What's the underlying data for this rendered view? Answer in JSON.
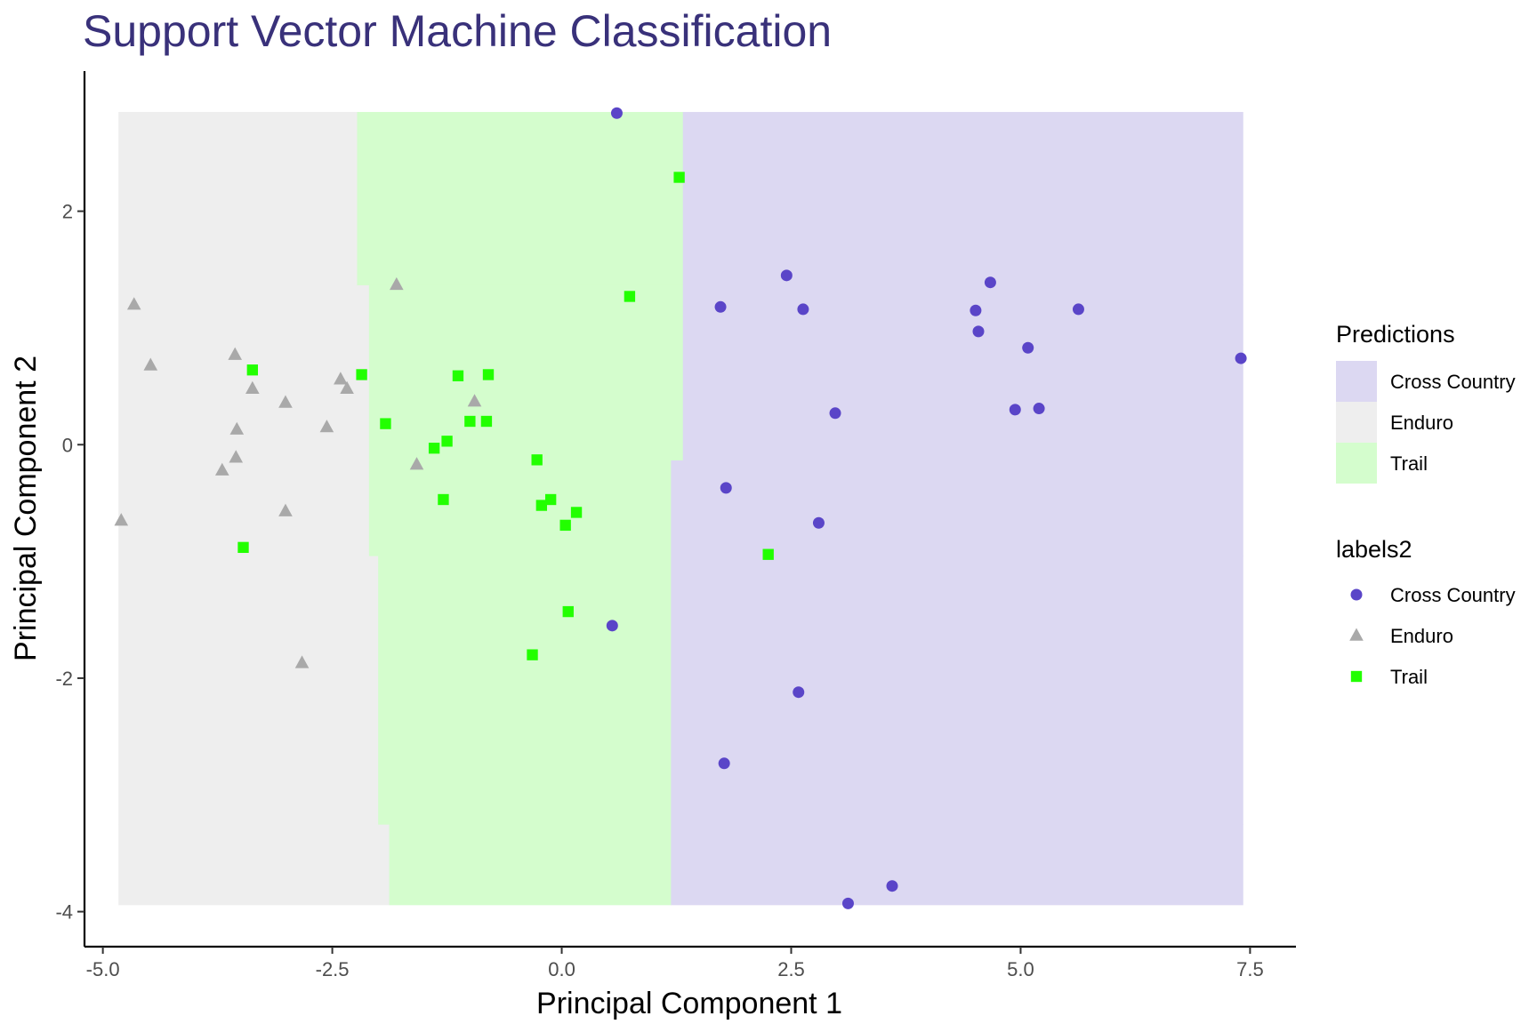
{
  "chart_data": {
    "type": "scatter",
    "title": "Support Vector Machine Classification",
    "xlabel": "Principal Component 1",
    "ylabel": "Principal Component 2",
    "xlim": [
      -5.2,
      8.0
    ],
    "ylim": [
      -4.3,
      3.2
    ],
    "x_ticks": [
      -5.0,
      -2.5,
      0.0,
      2.5,
      5.0,
      7.5
    ],
    "x_tick_labels": [
      "-5.0",
      "-2.5",
      "0.0",
      "2.5",
      "5.0",
      "7.5"
    ],
    "y_ticks": [
      2,
      0,
      -2,
      -4
    ],
    "y_tick_labels": [
      "2",
      "0",
      "-2",
      "-4"
    ],
    "grid": false,
    "legend_placement": "right",
    "prediction_regions": {
      "legend_title": "Predictions",
      "extent": {
        "x": [
          -4.83,
          7.42
        ],
        "y": [
          -3.94,
          2.85
        ]
      },
      "classes": [
        {
          "name": "Cross Country",
          "color": "#dcd8f2"
        },
        {
          "name": "Enduro",
          "color": "#eeeeee"
        },
        {
          "name": "Trail",
          "color": "#d4fdcd"
        }
      ],
      "boundaries": {
        "enduro_trail": [
          {
            "y_from": 1.37,
            "y_to": 2.85,
            "x": -2.23
          },
          {
            "y_from": -0.95,
            "y_to": 1.37,
            "x": -2.1
          },
          {
            "y_from": -3.25,
            "y_to": -0.95,
            "x": -2.0
          },
          {
            "y_from": -3.94,
            "y_to": -3.25,
            "x": -1.88
          }
        ],
        "trail_cross_country": [
          {
            "y_from": -0.13,
            "y_to": 2.85,
            "x": 1.32
          },
          {
            "y_from": -3.94,
            "y_to": -0.13,
            "x": 1.19
          }
        ]
      }
    },
    "series_legend_title": "labels2",
    "series": [
      {
        "name": "Cross Country",
        "marker": "circle",
        "color": "#5a45c8",
        "points": [
          [
            0.6,
            2.84
          ],
          [
            2.45,
            1.45
          ],
          [
            4.67,
            1.39
          ],
          [
            1.73,
            1.18
          ],
          [
            2.63,
            1.16
          ],
          [
            4.51,
            1.15
          ],
          [
            5.63,
            1.16
          ],
          [
            4.54,
            0.97
          ],
          [
            5.08,
            0.83
          ],
          [
            7.4,
            0.74
          ],
          [
            2.98,
            0.27
          ],
          [
            4.94,
            0.3
          ],
          [
            5.2,
            0.31
          ],
          [
            1.79,
            -0.37
          ],
          [
            2.8,
            -0.67
          ],
          [
            0.55,
            -1.55
          ],
          [
            2.58,
            -2.12
          ],
          [
            1.77,
            -2.73
          ],
          [
            3.6,
            -3.78
          ],
          [
            3.12,
            -3.93
          ]
        ]
      },
      {
        "name": "Enduro",
        "marker": "triangle",
        "color": "#a9a9a9",
        "points": [
          [
            -4.66,
            1.2
          ],
          [
            -1.8,
            1.37
          ],
          [
            -4.48,
            0.68
          ],
          [
            -3.56,
            0.77
          ],
          [
            -3.37,
            0.48
          ],
          [
            -2.41,
            0.56
          ],
          [
            -2.34,
            0.48
          ],
          [
            -3.01,
            0.36
          ],
          [
            -0.95,
            0.37
          ],
          [
            -3.54,
            0.13
          ],
          [
            -2.56,
            0.15
          ],
          [
            -3.55,
            -0.11
          ],
          [
            -3.7,
            -0.22
          ],
          [
            -1.58,
            -0.17
          ],
          [
            -3.01,
            -0.57
          ],
          [
            -4.8,
            -0.65
          ],
          [
            -2.83,
            -1.87
          ]
        ]
      },
      {
        "name": "Trail",
        "marker": "square",
        "color": "#22ff00",
        "points": [
          [
            1.28,
            2.29
          ],
          [
            0.74,
            1.27
          ],
          [
            -3.37,
            0.64
          ],
          [
            -2.18,
            0.6
          ],
          [
            -1.13,
            0.59
          ],
          [
            -0.8,
            0.6
          ],
          [
            -1.92,
            0.18
          ],
          [
            -1.0,
            0.2
          ],
          [
            -0.82,
            0.2
          ],
          [
            -1.25,
            0.03
          ],
          [
            -1.39,
            -0.03
          ],
          [
            -0.27,
            -0.13
          ],
          [
            -1.29,
            -0.47
          ],
          [
            -0.22,
            -0.52
          ],
          [
            -0.12,
            -0.47
          ],
          [
            0.16,
            -0.58
          ],
          [
            0.04,
            -0.69
          ],
          [
            -3.47,
            -0.88
          ],
          [
            2.25,
            -0.94
          ],
          [
            0.07,
            -1.43
          ],
          [
            -0.32,
            -1.8
          ]
        ]
      }
    ]
  }
}
